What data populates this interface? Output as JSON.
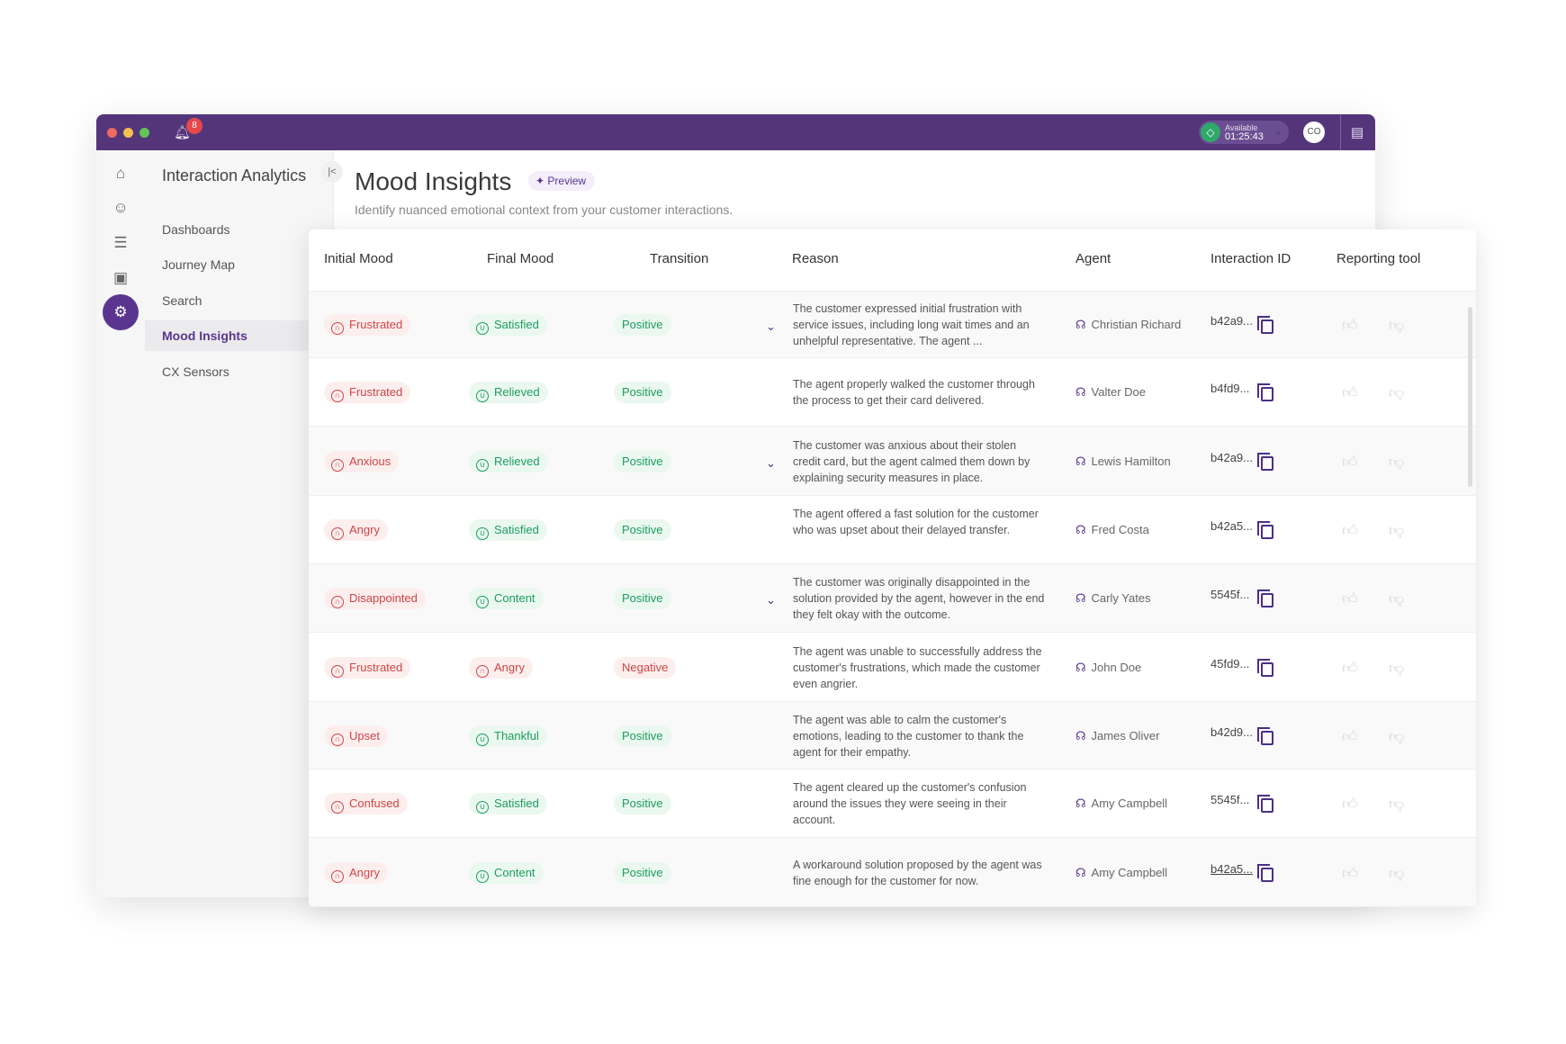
{
  "titlebar": {
    "notifications": "8",
    "status_label": "Available",
    "status_timer": "01:25:43",
    "avatar": "CO"
  },
  "sidebar": {
    "title": "Interaction Analytics",
    "items": [
      {
        "label": "Dashboards"
      },
      {
        "label": "Journey Map"
      },
      {
        "label": "Search"
      },
      {
        "label": "Mood Insights",
        "selected": true
      },
      {
        "label": "CX Sensors"
      }
    ]
  },
  "page": {
    "title": "Mood Insights",
    "badge": "Preview",
    "subtitle": "Identify nuanced emotional context from your customer interactions."
  },
  "table": {
    "columns": [
      "Initial Mood",
      "Final Mood",
      "Transition",
      "Reason",
      "Agent",
      "Interaction ID",
      "Reporting tool"
    ],
    "rows": [
      {
        "initial": "Frustrated",
        "final": "Satisfied",
        "transition": "Positive",
        "reason": "The customer expressed initial frustration with service issues, including long wait times and an unhelpful representative. The agent ...",
        "agent": "Christian Richard",
        "id": "b42a9...",
        "expandable": true
      },
      {
        "initial": "Frustrated",
        "final": "Relieved",
        "transition": "Positive",
        "reason": "The agent properly walked the customer through the process to get their card delivered.",
        "agent": "Valter Doe",
        "id": "b4fd9...",
        "expandable": false
      },
      {
        "initial": "Anxious",
        "final": "Relieved",
        "transition": "Positive",
        "reason": "The customer was anxious about their stolen credit card, but the agent calmed them down by explaining security measures in place.",
        "agent": "Lewis Hamilton",
        "id": "b42a9...",
        "expandable": true
      },
      {
        "initial": "Angry",
        "final": "Satisfied",
        "transition": "Positive",
        "reason": "The agent offered a fast solution for the customer who was upset about their delayed transfer.",
        "agent": "Fred Costa",
        "id": "b42a5...",
        "expandable": false
      },
      {
        "initial": "Disappointed",
        "final": "Content",
        "transition": "Positive",
        "reason": "The customer was originally disappointed in the solution provided by the agent, however in the end they felt okay with the outcome.",
        "agent": "Carly Yates",
        "id": "5545f...",
        "expandable": true
      },
      {
        "initial": "Frustrated",
        "final": "Angry",
        "transition": "Negative",
        "reason": "The agent was unable to successfully address the customer's frustrations, which made the customer even angrier.",
        "agent": "John Doe",
        "id": "45fd9...",
        "expandable": false
      },
      {
        "initial": "Upset",
        "final": "Thankful",
        "transition": "Positive",
        "reason": "The agent was able to calm the customer's emotions, leading to the customer to thank the agent for their empathy.",
        "agent": "James Oliver",
        "id": "b42d9...",
        "expandable": false
      },
      {
        "initial": "Confused",
        "final": "Satisfied",
        "transition": "Positive",
        "reason": "The agent cleared up the customer's confusion around the issues they were seeing in their account.",
        "agent": "Amy Campbell",
        "id": "5545f...",
        "expandable": false
      },
      {
        "initial": "Angry",
        "final": "Content",
        "transition": "Positive",
        "reason": "A workaround solution proposed by the agent was fine enough for the customer for now.",
        "agent": "Amy Campbell",
        "id": "b42a5...",
        "expandable": false,
        "id_hovered": true
      }
    ]
  },
  "colors": {
    "brand": "#54357a",
    "accent": "#5a3590",
    "negative": "#d04545",
    "positive": "#1d9d5e"
  }
}
